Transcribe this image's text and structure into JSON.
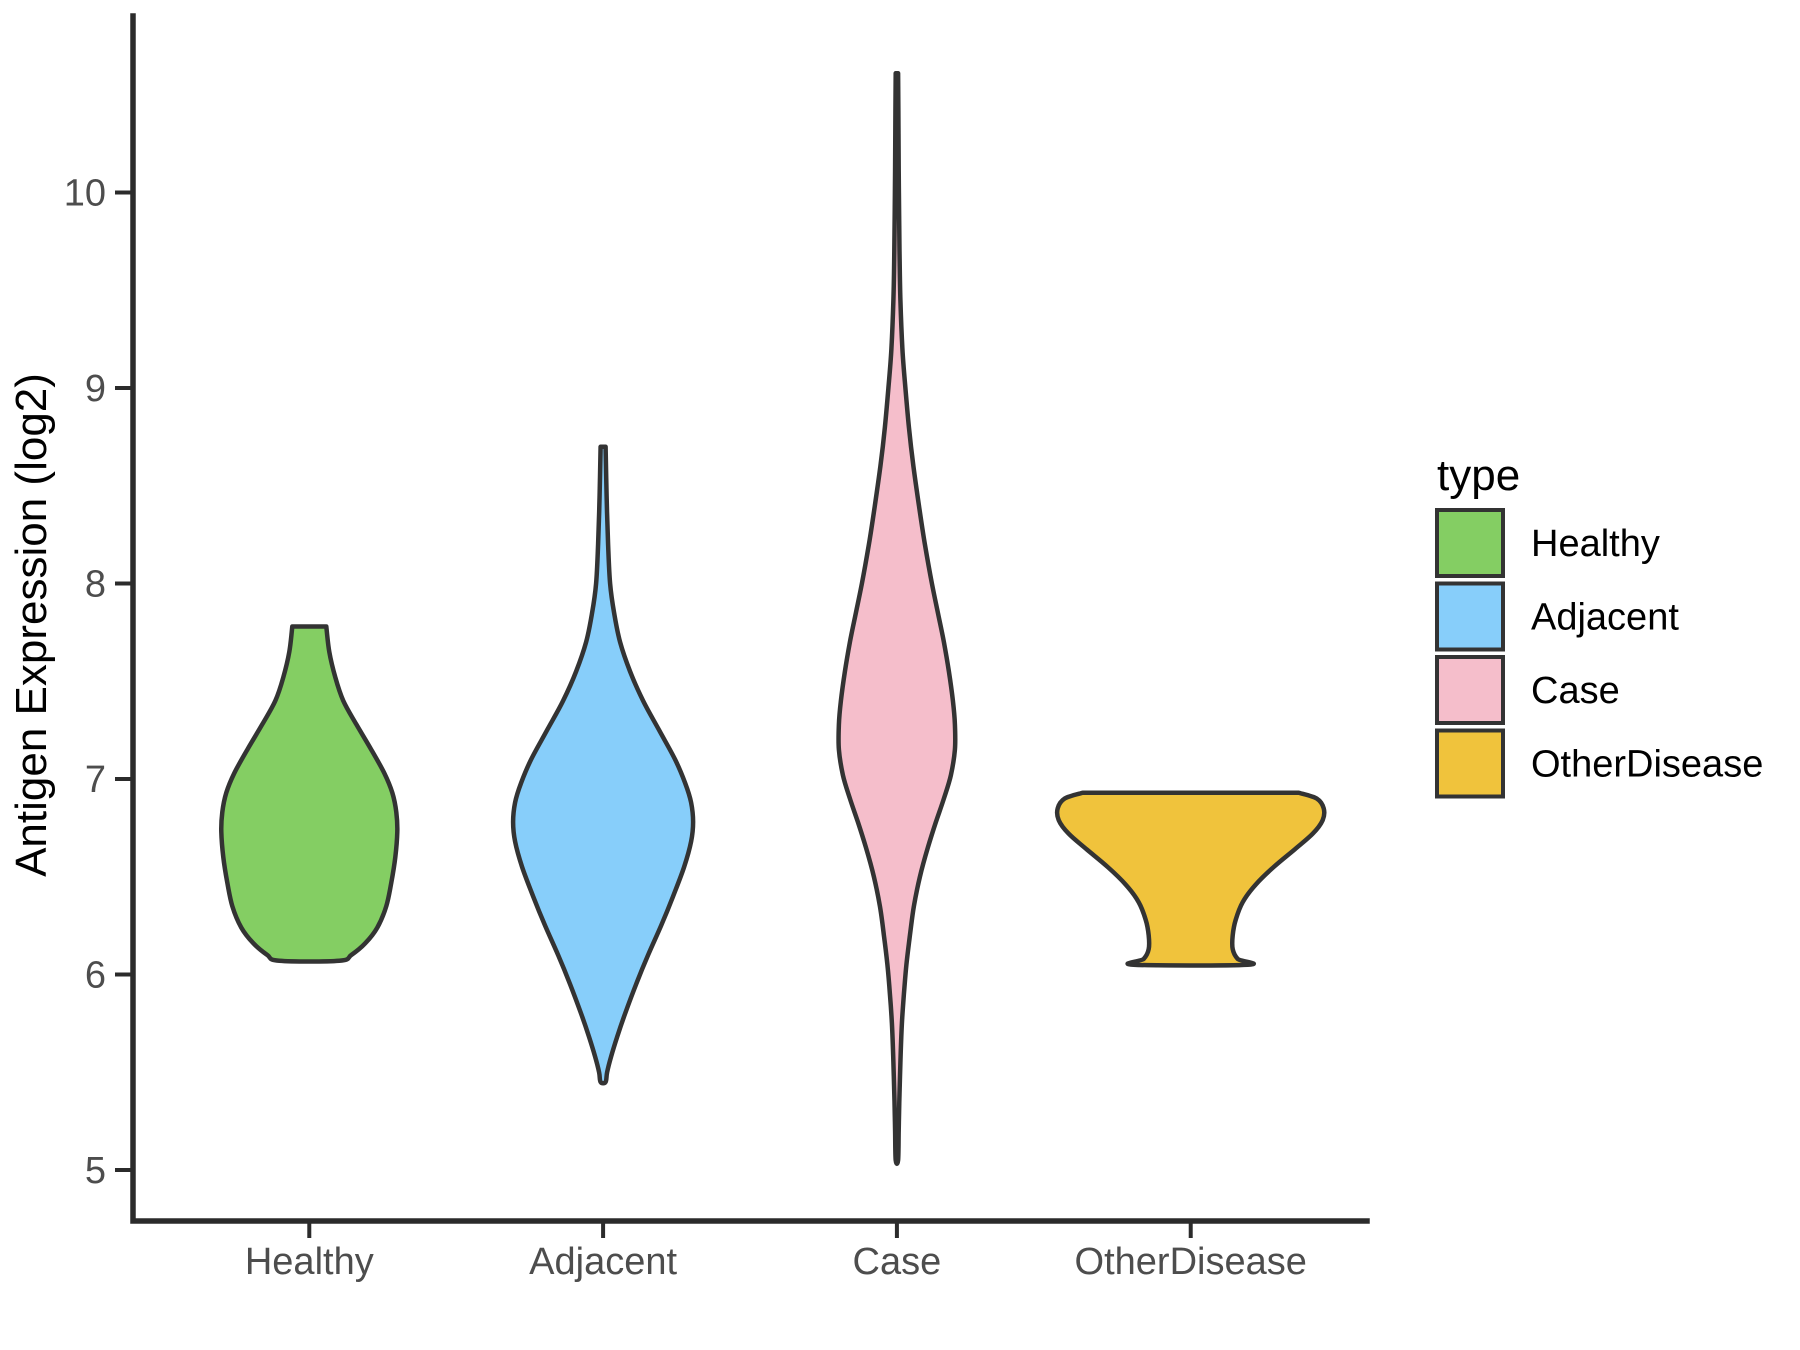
{
  "y_axis": {
    "title": "Antigen Expression (log2)",
    "tick_labels": [
      "5",
      "6",
      "7",
      "8",
      "9",
      "10"
    ]
  },
  "x_axis": {
    "tick_labels": [
      "Healthy",
      "Adjacent",
      "Case",
      "OtherDisease"
    ]
  },
  "legend": {
    "title": "type",
    "entries": [
      {
        "label": "Healthy",
        "color": "#84CE63"
      },
      {
        "label": "Adjacent",
        "color": "#87CEFA"
      },
      {
        "label": "Case",
        "color": "#F5BECB"
      },
      {
        "label": "OtherDisease",
        "color": "#F0C33C"
      }
    ]
  },
  "colors": {
    "outline": "#333333",
    "axis_line": "#2b2b2b",
    "tick_text": "#4d4d4d",
    "title_text": "#000000",
    "background": "#ffffff"
  },
  "chart_data": {
    "type": "violin",
    "title": "",
    "xlabel": "",
    "ylabel": "Antigen Expression (log2)",
    "categories": [
      "Healthy",
      "Adjacent",
      "Case",
      "OtherDisease"
    ],
    "y_ticks": [
      5,
      6,
      7,
      8,
      9,
      10
    ],
    "ylim": [
      4.75,
      10.75
    ],
    "grid": false,
    "legend_position": "right",
    "legend_title": "type",
    "series": [
      {
        "name": "Healthy",
        "fill": "#84CE63",
        "value_range": [
          6.07,
          7.78
        ],
        "flat_top": true,
        "flat_bottom": true,
        "profile": [
          [
            7.78,
            17
          ],
          [
            7.65,
            20
          ],
          [
            7.52,
            26
          ],
          [
            7.4,
            34
          ],
          [
            7.28,
            47
          ],
          [
            7.15,
            62
          ],
          [
            7.03,
            75
          ],
          [
            6.93,
            83
          ],
          [
            6.83,
            87
          ],
          [
            6.73,
            88
          ],
          [
            6.6,
            86
          ],
          [
            6.47,
            82
          ],
          [
            6.35,
            77
          ],
          [
            6.24,
            68
          ],
          [
            6.16,
            56
          ],
          [
            6.1,
            42
          ],
          [
            6.07,
            30
          ]
        ]
      },
      {
        "name": "Adjacent",
        "fill": "#87CEFA",
        "value_range": [
          5.45,
          8.7
        ],
        "flat_top": false,
        "flat_bottom": false,
        "profile": [
          [
            8.7,
            2.5
          ],
          [
            8.45,
            3.5
          ],
          [
            8.2,
            5
          ],
          [
            8.0,
            7
          ],
          [
            7.85,
            11
          ],
          [
            7.7,
            17
          ],
          [
            7.55,
            27
          ],
          [
            7.4,
            40
          ],
          [
            7.25,
            56
          ],
          [
            7.1,
            72
          ],
          [
            6.98,
            82
          ],
          [
            6.88,
            88
          ],
          [
            6.78,
            90
          ],
          [
            6.68,
            88
          ],
          [
            6.55,
            81
          ],
          [
            6.4,
            70
          ],
          [
            6.25,
            58
          ],
          [
            6.1,
            45
          ],
          [
            5.95,
            33
          ],
          [
            5.8,
            22
          ],
          [
            5.68,
            14
          ],
          [
            5.58,
            8
          ],
          [
            5.5,
            4
          ],
          [
            5.45,
            2.5
          ]
        ]
      },
      {
        "name": "Case",
        "fill": "#F5BECB",
        "value_range": [
          5.05,
          10.61
        ],
        "flat_top": false,
        "flat_bottom": false,
        "profile": [
          [
            10.61,
            1.2
          ],
          [
            10.3,
            1.6
          ],
          [
            10.0,
            2
          ],
          [
            9.7,
            2.6
          ],
          [
            9.45,
            3.5
          ],
          [
            9.2,
            5.5
          ],
          [
            9.0,
            8.5
          ],
          [
            8.8,
            12
          ],
          [
            8.6,
            16.5
          ],
          [
            8.4,
            22
          ],
          [
            8.2,
            28
          ],
          [
            8.0,
            35
          ],
          [
            7.85,
            41
          ],
          [
            7.7,
            47
          ],
          [
            7.55,
            52
          ],
          [
            7.4,
            56
          ],
          [
            7.28,
            58
          ],
          [
            7.15,
            58
          ],
          [
            7.02,
            54
          ],
          [
            6.9,
            47
          ],
          [
            6.78,
            39
          ],
          [
            6.65,
            31
          ],
          [
            6.5,
            23
          ],
          [
            6.35,
            17
          ],
          [
            6.2,
            13
          ],
          [
            6.05,
            9.5
          ],
          [
            5.9,
            7
          ],
          [
            5.75,
            5
          ],
          [
            5.55,
            3.5
          ],
          [
            5.35,
            2.4
          ],
          [
            5.2,
            1.8
          ],
          [
            5.05,
            1.2
          ]
        ]
      },
      {
        "name": "OtherDisease",
        "fill": "#F0C33C",
        "value_range": [
          6.05,
          6.93
        ],
        "flat_top": true,
        "flat_bottom": true,
        "profile": [
          [
            6.93,
            108
          ],
          [
            6.9,
            126
          ],
          [
            6.85,
            133
          ],
          [
            6.79,
            132
          ],
          [
            6.72,
            122
          ],
          [
            6.64,
            104
          ],
          [
            6.55,
            83
          ],
          [
            6.46,
            65
          ],
          [
            6.37,
            52
          ],
          [
            6.28,
            45
          ],
          [
            6.2,
            42
          ],
          [
            6.13,
            42
          ],
          [
            6.08,
            47
          ],
          [
            6.05,
            57
          ]
        ]
      }
    ]
  }
}
